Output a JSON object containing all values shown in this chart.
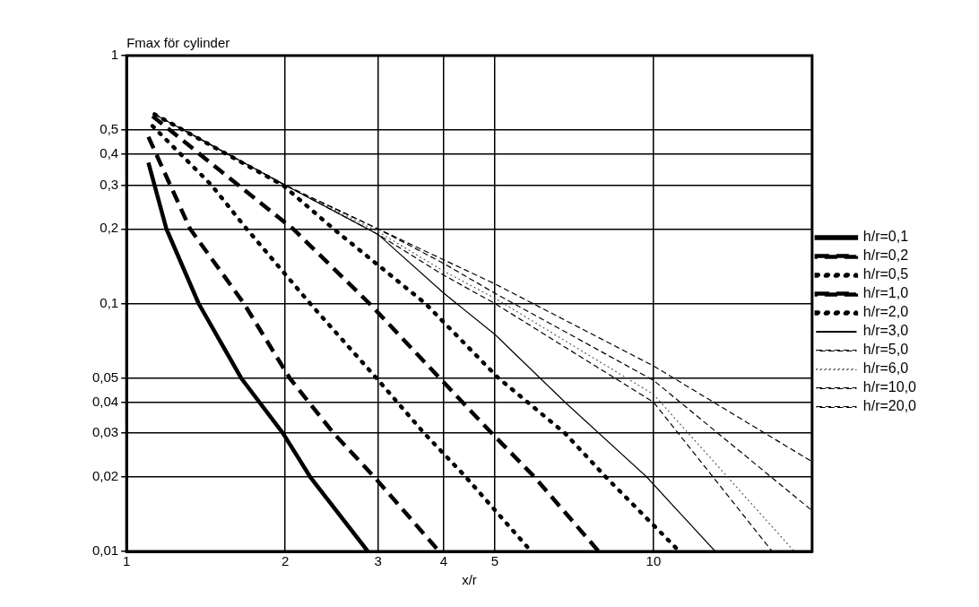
{
  "chart_data": {
    "type": "line",
    "ylabel": "Fmax för cylinder",
    "xlabel": "x/r",
    "log": "xy",
    "grid": true,
    "legend": "right",
    "marker": "none",
    "xlim": [
      1,
      20
    ],
    "xticks": [
      1,
      2,
      3,
      4,
      5,
      10
    ],
    "ylim": [
      0.01,
      1
    ],
    "yticks": [
      {
        "value": 0.01,
        "label": "0,01"
      },
      {
        "value": 0.02,
        "label": "0,02"
      },
      {
        "value": 0.03,
        "label": "0,03"
      },
      {
        "value": 0.04,
        "label": "0,04"
      },
      {
        "value": 0.05,
        "label": "0,05"
      },
      {
        "value": 0.1,
        "label": "0,1"
      },
      {
        "value": 0.2,
        "label": "0,2"
      },
      {
        "value": 0.3,
        "label": "0,3"
      },
      {
        "value": 0.4,
        "label": "0,4"
      },
      {
        "value": 0.5,
        "label": "0,5"
      },
      {
        "value": 1,
        "label": "1"
      }
    ],
    "series": [
      {
        "name": "h/r=0,1",
        "color": "#000000",
        "line_style": "solid",
        "x": [
          1.1,
          1.19,
          1.37,
          1.65,
          1.98,
          2.23,
          2.87
        ],
        "values": [
          0.37,
          0.2,
          0.1,
          0.05,
          0.03,
          0.02,
          0.01
        ]
      },
      {
        "name": "h/r=0,2",
        "color": "#000000",
        "line_style": "dashed",
        "x": [
          1.1,
          1.32,
          1.67,
          2.04,
          2.47,
          2.95,
          3.92
        ],
        "values": [
          0.47,
          0.2,
          0.1,
          0.05,
          0.03,
          0.02,
          0.01
        ]
      },
      {
        "name": "h/r=0,5",
        "color": "#000000",
        "line_style": "dotted",
        "x": [
          1.12,
          1.45,
          1.69,
          2.23,
          2.98,
          3.67,
          4.4,
          5.86
        ],
        "values": [
          0.52,
          0.3,
          0.2,
          0.1,
          0.05,
          0.03,
          0.02,
          0.01
        ]
      },
      {
        "name": "h/r=1,0",
        "color": "#000000",
        "line_style": "dashed",
        "x": [
          1.12,
          1.63,
          2.07,
          2.89,
          3.93,
          4.93,
          5.94,
          7.87
        ],
        "values": [
          0.57,
          0.3,
          0.2,
          0.1,
          0.05,
          0.03,
          0.02,
          0.01
        ]
      },
      {
        "name": "h/r=2,0",
        "color": "#000000",
        "line_style": "dotted",
        "x": [
          1.13,
          1.98,
          2.47,
          3.69,
          5.08,
          6.79,
          8.11,
          11.2
        ],
        "values": [
          0.58,
          0.3,
          0.2,
          0.1,
          0.05,
          0.03,
          0.02,
          0.01
        ]
      },
      {
        "name": "h/r=3,0",
        "color": "#000000",
        "line_style": "solid",
        "x": [
          1.13,
          2,
          3,
          4,
          5,
          6.79,
          9.7,
          13.1
        ],
        "values": [
          0.58,
          0.3,
          0.19,
          0.11,
          0.075,
          0.04,
          0.02,
          0.01
        ]
      },
      {
        "name": "h/r=5,0",
        "color": "#000000",
        "line_style": "dashed",
        "x": [
          1.13,
          2,
          3,
          4,
          5,
          10,
          16.8
        ],
        "values": [
          0.58,
          0.3,
          0.19,
          0.13,
          0.1,
          0.04,
          0.01
        ]
      },
      {
        "name": "h/r=6,0",
        "color": "#555555",
        "line_style": "dotted",
        "x": [
          1.13,
          2,
          3,
          4,
          5,
          10,
          18.5
        ],
        "values": [
          0.58,
          0.3,
          0.195,
          0.135,
          0.105,
          0.043,
          0.01
        ]
      },
      {
        "name": "h/r=10,0",
        "color": "#000000",
        "line_style": "dashed",
        "x": [
          1.13,
          2,
          3,
          4,
          5,
          10,
          20
        ],
        "values": [
          0.58,
          0.3,
          0.2,
          0.145,
          0.11,
          0.049,
          0.0146
        ]
      },
      {
        "name": "h/r=20,0",
        "color": "#000000",
        "line_style": "dashed",
        "x": [
          1.13,
          2,
          3,
          4,
          5,
          10,
          20
        ],
        "values": [
          0.58,
          0.3,
          0.2,
          0.15,
          0.12,
          0.056,
          0.023
        ]
      }
    ]
  }
}
